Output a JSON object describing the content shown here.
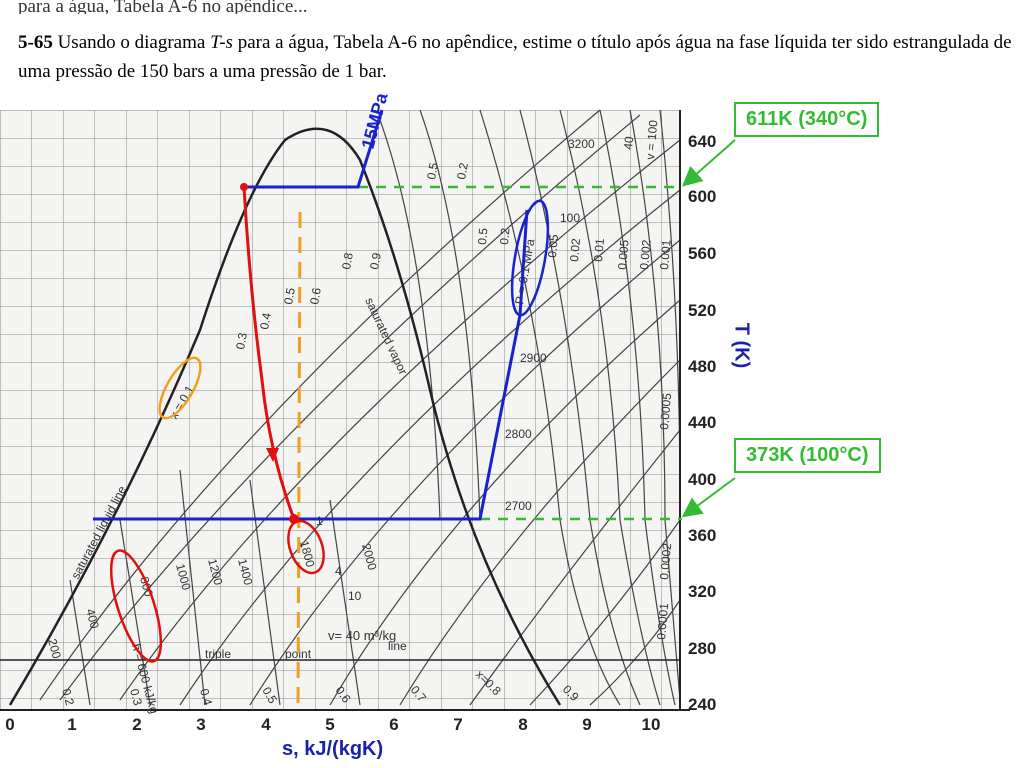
{
  "problem": {
    "cut_text": "para a água, Tabela A-6 no apêndice...",
    "number": "5-65",
    "text_a": "Usando o diagrama ",
    "text_var": "T-s",
    "text_b": " para a água, Tabela A-6 no apêndice, estime o título após água na fase líquida ter sido estrangulada de uma pressão de 150 bars a uma pressão de 1 bar."
  },
  "diagram": {
    "x_ticks": [
      "0",
      "1",
      "2",
      "3",
      "4",
      "5",
      "6",
      "7",
      "8",
      "9",
      "10"
    ],
    "y_ticks": [
      "640",
      "600",
      "560",
      "520",
      "480",
      "440",
      "400",
      "360",
      "320",
      "280",
      "240"
    ],
    "x_label": "s, kJ/(kgK)",
    "y_label": "T (K)",
    "annotation_pressure_high": "15MPa",
    "callout_high": "611K (340°C)",
    "callout_low": "373K (100°C)",
    "chart_labels": {
      "sat_liquid": "saturated liquid line",
      "sat_vapor": "saturated vapor",
      "triple": "triple",
      "point": "point",
      "line": "line",
      "volume": "v= 40 m³/kg",
      "p_low": "P = 0.1 MPa",
      "quality_01": "x = 0.1",
      "enthalpy_600": "h = 600 kJ/kg",
      "h1800": "1800",
      "h2900": "2900",
      "h2800": "2800",
      "h2700": "2700",
      "h3200": "3200",
      "h2000": "2000",
      "h1400": "1400",
      "h1200": "1200",
      "h1000": "1000",
      "h800": "800",
      "h400": "400",
      "h200": "200",
      "q02": "0.2",
      "q03": "0.3",
      "q04": "0.4",
      "q05": "0.5",
      "q06": "0.6",
      "q07": "0.7",
      "q08": "0.8",
      "q09": "0.9",
      "x08": "x=0.8",
      "x_09": "0.9",
      "v10": "10",
      "v4": "4",
      "v1": "1",
      "v05": "0.5",
      "v02": "0.2",
      "p05": "0.5",
      "p02": "0.2",
      "p005": "0.05",
      "p002": "0.02",
      "p001": "0.01",
      "p0005": "0.005",
      "p0002": "0.002",
      "p0001": "0.001",
      "p00005": "0.0005",
      "p00002": "0.0002",
      "p00001": "0.0001",
      "v100": "100",
      "v40": "40",
      "v100b": "v = 100"
    },
    "colors": {
      "process_isobar": "#1a22cc",
      "throttle_path": "#e01010",
      "isentropic_dash": "#f0a020",
      "callout": "#33bb33",
      "chart_ink": "#333333"
    }
  }
}
